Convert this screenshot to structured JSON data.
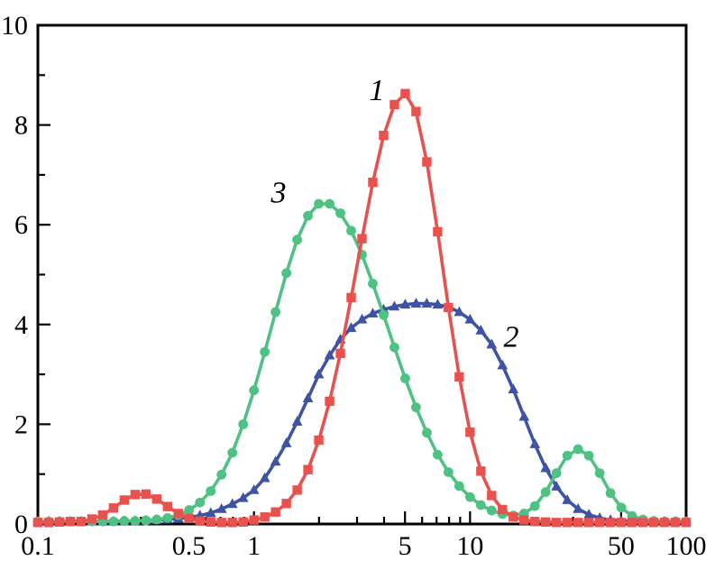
{
  "figure": {
    "background": "#ffffff"
  },
  "chart_data": {
    "type": "line",
    "title": "",
    "xlabel": "",
    "ylabel": "",
    "x_scale": "log",
    "xlim": [
      0.1,
      100
    ],
    "ylim": [
      0,
      10
    ],
    "grid": false,
    "legend": "none",
    "axis_color": "#000000",
    "x_major_ticks": [
      0.1,
      0.5,
      1,
      5,
      10,
      50,
      100
    ],
    "x_major_labels": [
      "0.1",
      "0.5",
      "1",
      "5",
      "10",
      "50",
      "100"
    ],
    "x_minor_ticks": [
      0.2,
      0.3,
      0.4,
      0.6,
      0.7,
      0.8,
      0.9,
      2,
      3,
      4,
      6,
      7,
      8,
      9,
      20,
      30,
      40,
      60,
      70,
      80,
      90
    ],
    "y_major_ticks": [
      0,
      2,
      4,
      6,
      8,
      10
    ],
    "y_major_labels": [
      "0",
      "2",
      "4",
      "6",
      "8",
      "10"
    ],
    "y_minor_ticks": [
      1,
      3,
      5,
      7,
      9
    ],
    "logx_start": -1,
    "logx_step": 0.05,
    "series": [
      {
        "name": "2",
        "label": "2",
        "marker": "triangle",
        "color": "#3e53a4",
        "values": [
          0.05,
          0.05,
          0.05,
          0.05,
          0.05,
          0.05,
          0.05,
          0.05,
          0.06,
          0.06,
          0.07,
          0.08,
          0.09,
          0.11,
          0.13,
          0.17,
          0.22,
          0.3,
          0.4,
          0.52,
          0.68,
          0.92,
          1.25,
          1.62,
          2.05,
          2.52,
          3.0,
          3.38,
          3.7,
          3.93,
          4.1,
          4.22,
          4.3,
          4.36,
          4.4,
          4.42,
          4.42,
          4.4,
          4.35,
          4.25,
          4.1,
          3.88,
          3.6,
          3.18,
          2.7,
          2.15,
          1.6,
          1.12,
          0.75,
          0.48,
          0.3,
          0.19,
          0.12,
          0.08,
          0.06,
          0.05,
          0.05,
          0.05,
          0.05,
          0.05,
          0.05
        ]
      },
      {
        "name": "3",
        "label": "3",
        "marker": "circle",
        "color": "#4ec183",
        "values": [
          0.05,
          0.05,
          0.05,
          0.05,
          0.05,
          0.05,
          0.05,
          0.05,
          0.06,
          0.06,
          0.07,
          0.09,
          0.12,
          0.18,
          0.28,
          0.43,
          0.66,
          0.99,
          1.43,
          2.0,
          2.68,
          3.45,
          4.25,
          5.03,
          5.7,
          6.18,
          6.42,
          6.42,
          6.23,
          5.88,
          5.4,
          4.82,
          4.19,
          3.54,
          2.92,
          2.34,
          1.83,
          1.39,
          1.04,
          0.76,
          0.54,
          0.38,
          0.27,
          0.2,
          0.17,
          0.21,
          0.36,
          0.64,
          1.02,
          1.37,
          1.5,
          1.37,
          1.02,
          0.62,
          0.33,
          0.16,
          0.09,
          0.06,
          0.05,
          0.05,
          0.05
        ]
      },
      {
        "name": "1",
        "label": "1",
        "marker": "square",
        "color": "#e8524e",
        "values": [
          0.03,
          0.03,
          0.04,
          0.05,
          0.05,
          0.1,
          0.18,
          0.32,
          0.48,
          0.59,
          0.6,
          0.5,
          0.35,
          0.21,
          0.11,
          0.06,
          0.04,
          0.03,
          0.03,
          0.04,
          0.08,
          0.14,
          0.24,
          0.41,
          0.68,
          1.09,
          1.68,
          2.46,
          3.42,
          4.54,
          5.72,
          6.85,
          7.79,
          8.41,
          8.63,
          8.27,
          7.26,
          5.86,
          4.34,
          2.95,
          1.84,
          1.06,
          0.57,
          0.29,
          0.14,
          0.08,
          0.05,
          0.04,
          0.03,
          0.03,
          0.03,
          0.03,
          0.03,
          0.03,
          0.03,
          0.03,
          0.03,
          0.03,
          0.03,
          0.03,
          0.03
        ]
      }
    ],
    "annotations": [
      {
        "text": "1",
        "x": 3.7,
        "y": 8.5
      },
      {
        "text": "2",
        "x": 15.5,
        "y": 3.55
      },
      {
        "text": "3",
        "x": 1.3,
        "y": 6.45
      }
    ]
  }
}
